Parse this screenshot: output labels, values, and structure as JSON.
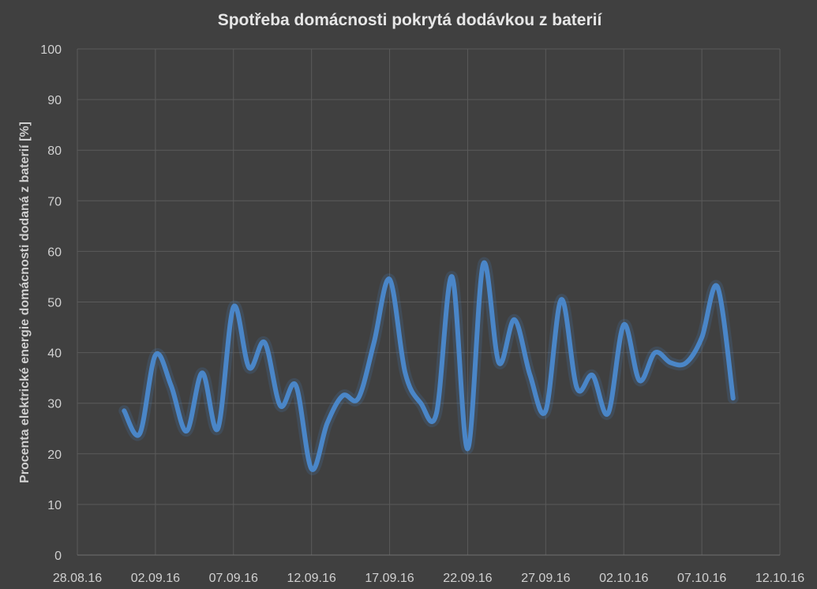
{
  "chart_data": {
    "type": "line",
    "title": "Spotřeba domácnosti pokrytá dodávkou z baterií",
    "xlabel": "",
    "ylabel": "Procenta elektrické energie domácnosti dodaná z baterií [%]",
    "ylim": [
      0,
      100
    ],
    "yticks": [
      0,
      10,
      20,
      30,
      40,
      50,
      60,
      70,
      80,
      90,
      100
    ],
    "xlim": [
      "2016-08-28",
      "2016-10-12"
    ],
    "xtick_labels": [
      "28.08.16",
      "02.09.16",
      "07.09.16",
      "12.09.16",
      "17.09.16",
      "22.09.16",
      "27.09.16",
      "02.10.16",
      "07.10.16",
      "12.10.16"
    ],
    "grid": true,
    "legend": "none",
    "colors": {
      "background": "#404040",
      "line": "#4a86c8",
      "grid": "#5a5a5a"
    },
    "series": [
      {
        "x": [
          "2016-08-31",
          "2016-09-01",
          "2016-09-02",
          "2016-09-03",
          "2016-09-04",
          "2016-09-05",
          "2016-09-06",
          "2016-09-07",
          "2016-09-08",
          "2016-09-09",
          "2016-09-10",
          "2016-09-11",
          "2016-09-12",
          "2016-09-13",
          "2016-09-14",
          "2016-09-15",
          "2016-09-16",
          "2016-09-17",
          "2016-09-18",
          "2016-09-19",
          "2016-09-20",
          "2016-09-21",
          "2016-09-22",
          "2016-09-23",
          "2016-09-24",
          "2016-09-25",
          "2016-09-26",
          "2016-09-27",
          "2016-09-28",
          "2016-09-29",
          "2016-09-30",
          "2016-10-01",
          "2016-10-02",
          "2016-10-03",
          "2016-10-04",
          "2016-10-05",
          "2016-10-06",
          "2016-10-07",
          "2016-10-08",
          "2016-10-09"
        ],
        "values": [
          28.5,
          24,
          39.5,
          33.5,
          24.5,
          36,
          25,
          49,
          37,
          42,
          29.5,
          33.5,
          17,
          26,
          31.5,
          31,
          42,
          54.5,
          36,
          30,
          28,
          55,
          21,
          57.5,
          38,
          46.5,
          35.5,
          28.5,
          50.5,
          33,
          35.5,
          28,
          45.5,
          34.5,
          40,
          38,
          38,
          43,
          53,
          31
        ]
      }
    ]
  }
}
